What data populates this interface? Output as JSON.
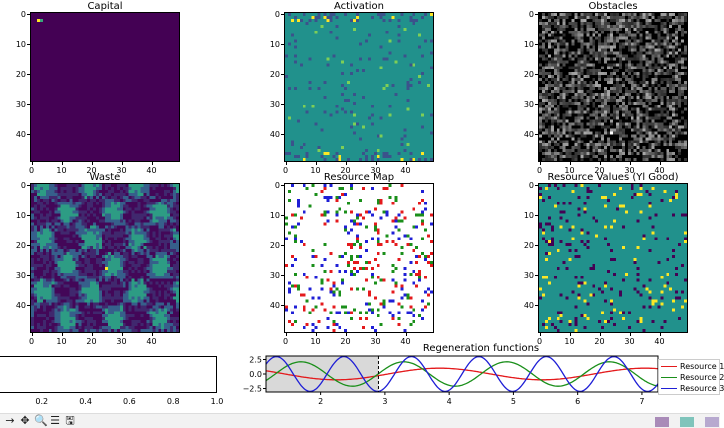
{
  "panels": [
    {
      "id": "capital",
      "title": "Capital",
      "style": "capital"
    },
    {
      "id": "activation",
      "title": "Activation",
      "style": "activation"
    },
    {
      "id": "obstacles",
      "title": "Obstacles",
      "style": "obstacles"
    },
    {
      "id": "waste",
      "title": "Waste",
      "style": "waste"
    },
    {
      "id": "resource_map",
      "title": "Resource Map",
      "style": "resmap"
    },
    {
      "id": "resource_values",
      "title": "Resource Values (Yl Good)",
      "style": "resvalues"
    }
  ],
  "heatmap_ticks": {
    "x": [
      "0",
      "10",
      "20",
      "30",
      "40"
    ],
    "y": [
      "0",
      "10",
      "20",
      "30",
      "40"
    ],
    "grid_size": 50
  },
  "colors": {
    "viridis_dark": "#440154",
    "viridis_teal": "#21918c",
    "viridis_yellow": "#fde725",
    "resource_1": "#e41a1c",
    "resource_2": "#1a8f1a",
    "resource_3": "#1f1fd6"
  },
  "empty_axis": {
    "xticks": [
      "0.2",
      "0.4",
      "0.6",
      "0.8",
      "1.0"
    ]
  },
  "chart_data": {
    "type": "line",
    "title": "Regeneration functions",
    "xticks": [
      "2",
      "3",
      "4",
      "5",
      "6",
      "7"
    ],
    "yticks": [
      "2.5",
      "0.0",
      "-2.5"
    ],
    "xlim": [
      1.15,
      7.25
    ],
    "ylim": [
      -3.1,
      3.1
    ],
    "shaded_span": [
      1.15,
      2.9
    ],
    "marker_x": 2.9,
    "series": [
      {
        "name": "Resource 1",
        "color": "#e41a1c",
        "amplitude": 1.0,
        "period": 3.2,
        "phase": 0.3
      },
      {
        "name": "Resource 2",
        "color": "#1a8f1a",
        "amplitude": 2.1,
        "period": 1.6,
        "phase": 1.2
      },
      {
        "name": "Resource 3",
        "color": "#1f1fd6",
        "amplitude": 3.0,
        "period": 1.05,
        "phase": 0.0
      }
    ]
  },
  "toolbar": {
    "buttons": [
      "→",
      "✥",
      "🔍",
      "☰",
      "🖫"
    ]
  }
}
